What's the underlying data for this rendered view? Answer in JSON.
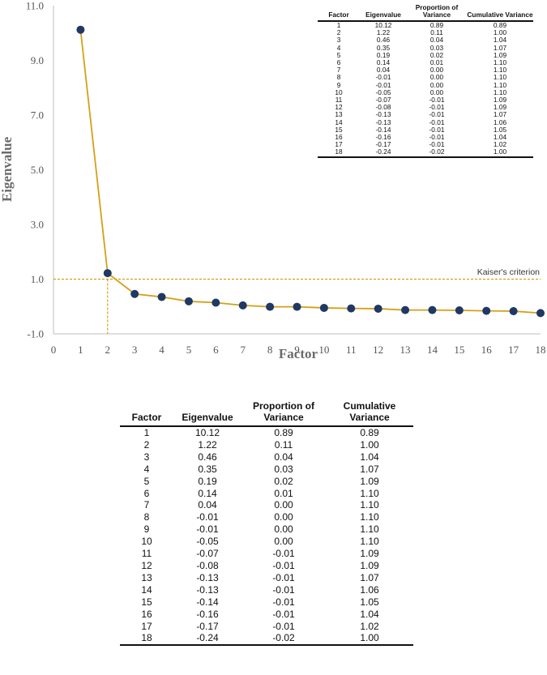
{
  "chart_data": {
    "type": "line",
    "xlabel": "Factor",
    "ylabel": "Eigenvalue",
    "xlim": [
      0,
      18
    ],
    "ylim": [
      -1,
      11
    ],
    "x_ticks": [
      "0",
      "1",
      "2",
      "3",
      "4",
      "5",
      "6",
      "7",
      "8",
      "9",
      "10",
      "11",
      "12",
      "13",
      "14",
      "15",
      "16",
      "17",
      "18"
    ],
    "y_ticks": [
      "11.0",
      "9.0",
      "7.0",
      "5.0",
      "3.0",
      "1.0",
      "-1.0"
    ],
    "x": [
      1,
      2,
      3,
      4,
      5,
      6,
      7,
      8,
      9,
      10,
      11,
      12,
      13,
      14,
      15,
      16,
      17,
      18
    ],
    "values": [
      10.12,
      1.22,
      0.46,
      0.35,
      0.19,
      0.14,
      0.04,
      -0.01,
      -0.01,
      -0.05,
      -0.07,
      -0.08,
      -0.13,
      -0.13,
      -0.14,
      -0.16,
      -0.17,
      -0.24
    ],
    "reference_line": {
      "y": 1.0,
      "label": "Kaiser's criterion",
      "style": "dashed"
    },
    "reference_vline": {
      "x": 2,
      "style": "dashed"
    },
    "grid": false,
    "colors": {
      "line": "#d4a017",
      "marker": "#1f3864",
      "axis": "#bfbfbf"
    }
  },
  "table": {
    "headers": [
      "Factor",
      "Eigenvalue",
      "Proportion of Variance",
      "Cumulative Variance"
    ],
    "rows": [
      [
        "1",
        "10.12",
        "0.89",
        "0.89"
      ],
      [
        "2",
        "1.22",
        "0.11",
        "1.00"
      ],
      [
        "3",
        "0.46",
        "0.04",
        "1.04"
      ],
      [
        "4",
        "0.35",
        "0.03",
        "1.07"
      ],
      [
        "5",
        "0.19",
        "0.02",
        "1.09"
      ],
      [
        "6",
        "0.14",
        "0.01",
        "1.10"
      ],
      [
        "7",
        "0.04",
        "0.00",
        "1.10"
      ],
      [
        "8",
        "-0.01",
        "0.00",
        "1.10"
      ],
      [
        "9",
        "-0.01",
        "0.00",
        "1.10"
      ],
      [
        "10",
        "-0.05",
        "0.00",
        "1.10"
      ],
      [
        "11",
        "-0.07",
        "-0.01",
        "1.09"
      ],
      [
        "12",
        "-0.08",
        "-0.01",
        "1.09"
      ],
      [
        "13",
        "-0.13",
        "-0.01",
        "1.07"
      ],
      [
        "14",
        "-0.13",
        "-0.01",
        "1.06"
      ],
      [
        "15",
        "-0.14",
        "-0.01",
        "1.05"
      ],
      [
        "16",
        "-0.16",
        "-0.01",
        "1.04"
      ],
      [
        "17",
        "-0.17",
        "-0.01",
        "1.02"
      ],
      [
        "18",
        "-0.24",
        "-0.02",
        "1.00"
      ]
    ]
  }
}
